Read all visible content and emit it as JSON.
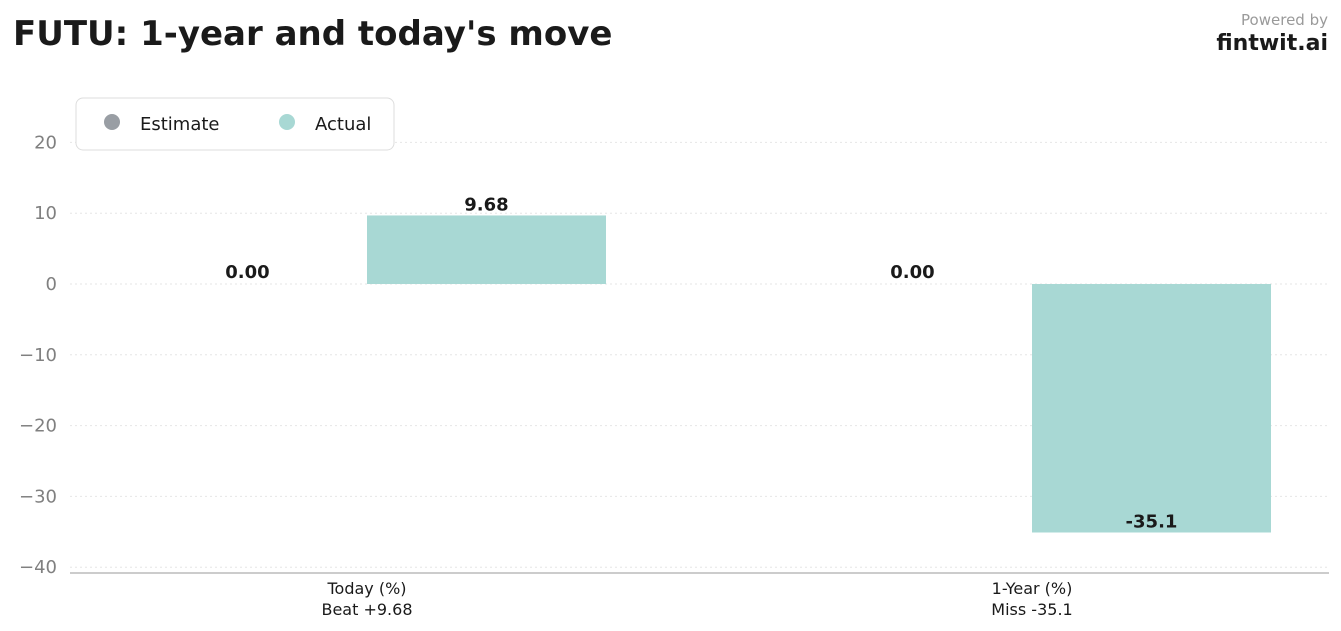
{
  "header": {
    "title": "FUTU: 1-year and today's move",
    "powered_by": "Powered by",
    "brand": "fintwit.ai"
  },
  "colors": {
    "estimate": "#999ea4",
    "actual": "#a8d8d4",
    "grid": "#e6e6e6",
    "axis": "#bbbbbb",
    "tick_text": "#808080",
    "label_text": "#1a1a1a"
  },
  "chart_data": {
    "type": "bar",
    "categories": [
      "Today (%)\nBeat +9.68",
      "1-Year (%)\nMiss -35.1"
    ],
    "series": [
      {
        "name": "Estimate",
        "values": [
          0.0,
          0.0
        ],
        "labels": [
          "0.00",
          "0.00"
        ]
      },
      {
        "name": "Actual",
        "values": [
          9.68,
          -35.1
        ],
        "labels": [
          "9.68",
          "-35.1"
        ]
      }
    ],
    "ylim": [
      -40,
      25
    ],
    "yticks": [
      20,
      10,
      0,
      -10,
      -20,
      -30,
      -40
    ],
    "ytick_labels": [
      "20",
      "10",
      "0",
      "−10",
      "−20",
      "−30",
      "−40"
    ],
    "grid": true,
    "legend": "top-left"
  }
}
